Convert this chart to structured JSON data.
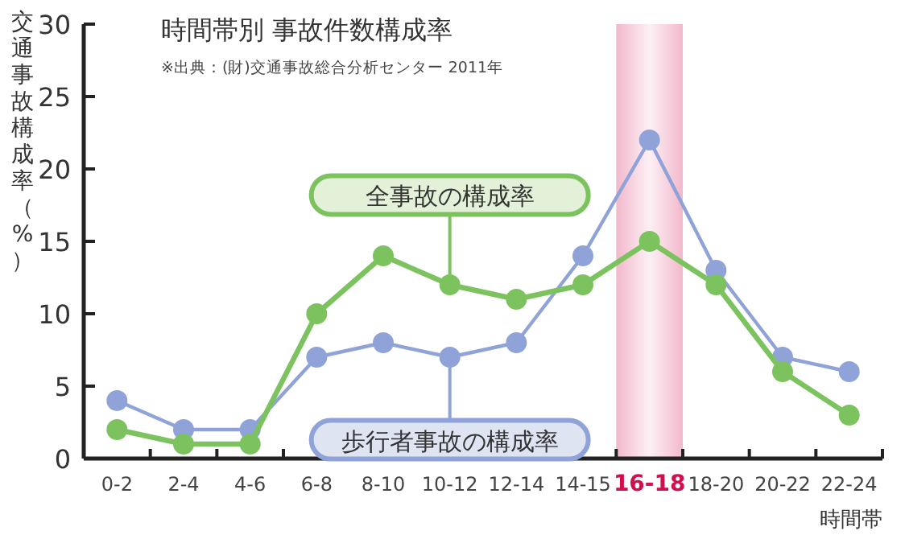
{
  "chart_data": {
    "type": "line",
    "title": "時間帯別 事故件数構成率",
    "annotations": [
      "※出典：(財)交通事故総合分析センター 2011年"
    ],
    "ylabel": "交通事故構成率（%）",
    "xlabel": "時間帯",
    "categories": [
      "0-2",
      "2-4",
      "4-6",
      "6-8",
      "8-10",
      "10-12",
      "12-14",
      "14-15",
      "16-18",
      "18-20",
      "20-22",
      "22-24"
    ],
    "series": [
      {
        "name": "歩行者事故の構成率",
        "color": "#8fa3d8",
        "values": [
          4,
          2,
          2,
          7,
          8,
          7,
          8,
          14,
          22,
          13,
          7,
          6
        ]
      },
      {
        "name": "全事故の構成率",
        "color": "#7cc35f",
        "values": [
          2,
          1,
          1,
          10,
          14,
          12,
          11,
          12,
          15,
          12,
          6,
          3
        ]
      }
    ],
    "ylim": [
      0,
      30
    ],
    "yticks": [
      0,
      5,
      10,
      15,
      20,
      25,
      30
    ],
    "grid": false,
    "legend": false,
    "marker": "circle",
    "line_style": "solid",
    "bands": [
      {
        "axis": "x",
        "from": "16-18",
        "to": "16-18",
        "color": "#f2b8cc"
      }
    ]
  }
}
